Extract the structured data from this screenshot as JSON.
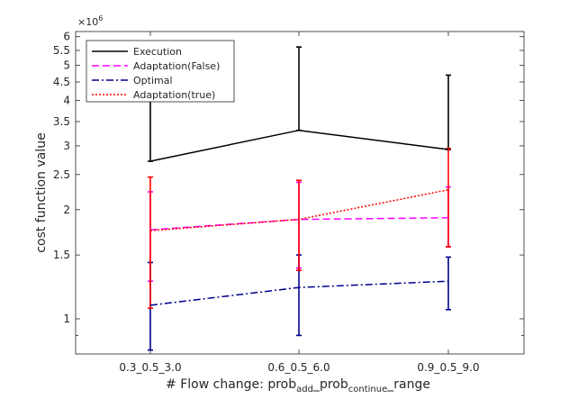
{
  "chart_data": {
    "type": "line",
    "yscale": "log",
    "ylim": [
      800000,
      6200000
    ],
    "exponent_label": "×10",
    "exponent_power": "6",
    "yticks": [
      {
        "value": 1000000,
        "label": "1"
      },
      {
        "value": 1500000,
        "label": "1.5"
      },
      {
        "value": 2000000,
        "label": "2"
      },
      {
        "value": 2500000,
        "label": "2.5"
      },
      {
        "value": 3000000,
        "label": "3"
      },
      {
        "value": 3500000,
        "label": "3.5"
      },
      {
        "value": 4000000,
        "label": "4"
      },
      {
        "value": 4500000,
        "label": "4.5"
      },
      {
        "value": 5000000,
        "label": "5"
      },
      {
        "value": 5500000,
        "label": "5.5"
      },
      {
        "value": 6000000,
        "label": "6"
      }
    ],
    "yminorticks": [
      900000
    ],
    "categories": [
      "0.3_0.5_3.0",
      "0.6_0.5_6.0",
      "0.9_0.5_9.0"
    ],
    "xlabel": {
      "pre": "# Flow change: prob",
      "sub1": "add",
      "mid1": "_prob",
      "sub2": "continue",
      "mid2": "_range"
    },
    "ylabel": "cost function value",
    "grid": false,
    "legend_position": "top-left",
    "series": [
      {
        "name": "Execution",
        "color": "#000000",
        "dash": "solid",
        "values": [
          2720000,
          3310000,
          2930000
        ],
        "err_low": [
          2720000,
          3310000,
          2930000
        ],
        "err_high": [
          4450000,
          5620000,
          4700000
        ]
      },
      {
        "name": "Adaptation(False)",
        "color": "#ff00ff",
        "dash": "dashed",
        "values": [
          1760000,
          1880000,
          1900000
        ],
        "err_low": [
          1270000,
          1380000,
          1580000
        ],
        "err_high": [
          2240000,
          2380000,
          2310000
        ]
      },
      {
        "name": "Optimal",
        "color": "#00008b",
        "dash": "dashdot",
        "values": [
          1090000,
          1220000,
          1270000
        ],
        "err_low": [
          820000,
          900000,
          1060000
        ],
        "err_high": [
          1430000,
          1500000,
          1480000
        ]
      },
      {
        "name": "Adaptation(true)",
        "color": "#ff0000",
        "dash": "dotted",
        "values": [
          1750000,
          1880000,
          2270000
        ],
        "err_low": [
          1070000,
          1360000,
          1580000
        ],
        "err_high": [
          2460000,
          2410000,
          2950000
        ]
      }
    ]
  }
}
